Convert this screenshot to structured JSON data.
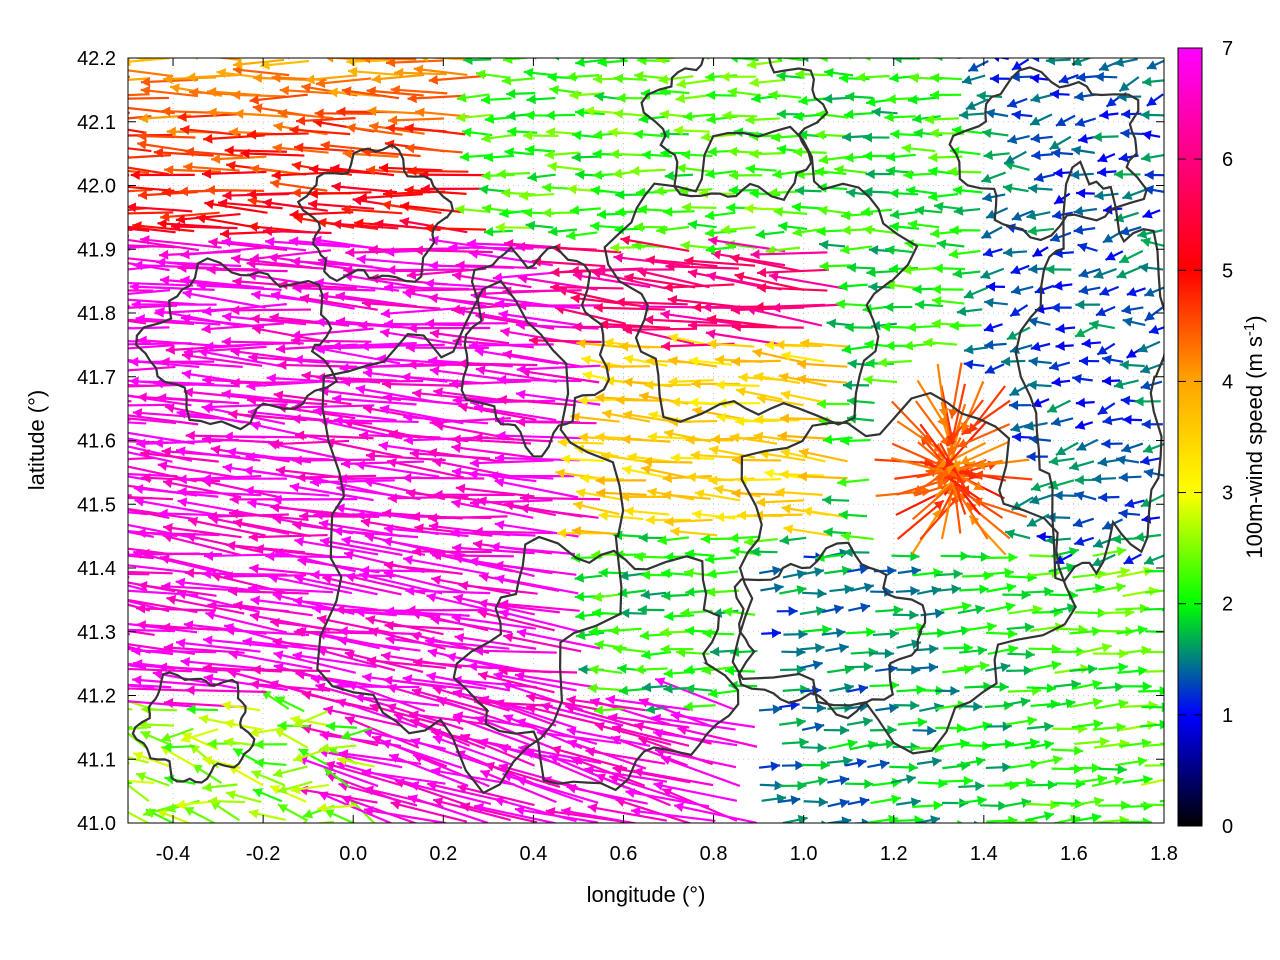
{
  "chart_data": {
    "type": "vector-field",
    "title": "",
    "xlabel": "longitude (°)",
    "ylabel": "latitude (°)",
    "xlim": [
      -0.5,
      1.8
    ],
    "ylim": [
      41.0,
      42.2
    ],
    "xticks": [
      -0.4,
      -0.2,
      0.0,
      0.2,
      0.4,
      0.6,
      0.8,
      1.0,
      1.2,
      1.4,
      1.6,
      1.8
    ],
    "xtick_labels": [
      "-0.4",
      "-0.2",
      "0.0",
      "0.2",
      "0.4",
      "0.6",
      "0.8",
      "1.0",
      "1.2",
      "1.4",
      "1.6",
      "1.8"
    ],
    "yticks": [
      41.0,
      41.1,
      41.2,
      41.3,
      41.4,
      41.5,
      41.6,
      41.7,
      41.8,
      41.9,
      42.0,
      42.1,
      42.2
    ],
    "ytick_labels": [
      "41.0",
      "41.1",
      "41.2",
      "41.3",
      "41.4",
      "41.5",
      "41.6",
      "41.7",
      "41.8",
      "41.9",
      "42.0",
      "42.1",
      "42.2"
    ],
    "grid": true,
    "colorbar": {
      "label": "100m-wind speed (m s",
      "label_sup": "-1",
      "label_suffix": ")",
      "range": [
        0,
        7
      ],
      "ticks": [
        0,
        1,
        2,
        3,
        4,
        5,
        6,
        7
      ],
      "tick_labels": [
        "0",
        "1",
        "2",
        "3",
        "4",
        "5",
        "6",
        "7"
      ],
      "colors": [
        "#000000",
        "#0000ff",
        "#00ff00",
        "#ffff00",
        "#ffa500",
        "#ff0000",
        "#ff00ff"
      ]
    },
    "vector_field": {
      "description_units": "wind speed in m s-1, direction in degrees (meteorological 'towards'): 180 = westward",
      "regions": [
        {
          "lon": [
            -0.5,
            0.6
          ],
          "lat": [
            41.2,
            41.9
          ],
          "speed": 7.0,
          "direction": "westward"
        },
        {
          "lon": [
            -0.5,
            0.3
          ],
          "lat": [
            41.9,
            42.2
          ],
          "speed": 5.0,
          "direction": "westward"
        },
        {
          "lon": [
            0.3,
            1.0
          ],
          "lat": [
            41.8,
            42.2
          ],
          "speed": 2.0,
          "direction": "westward"
        },
        {
          "lon": [
            0.5,
            1.1
          ],
          "lat": [
            41.5,
            41.8
          ],
          "speed": 3.5,
          "direction": "westward"
        },
        {
          "lon": [
            1.1,
            1.4
          ],
          "lat": [
            41.45,
            41.7
          ],
          "speed": 4.5,
          "direction": "converging"
        },
        {
          "lon": [
            0.9,
            1.8
          ],
          "lat": [
            41.0,
            41.4
          ],
          "speed": 1.5,
          "direction": "eastward"
        },
        {
          "lon": [
            1.4,
            1.8
          ],
          "lat": [
            41.6,
            42.2
          ],
          "speed": 1.0,
          "direction": "variable"
        },
        {
          "lon": [
            -0.5,
            0.0
          ],
          "lat": [
            41.0,
            41.2
          ],
          "speed": 2.5,
          "direction": "variable"
        }
      ]
    },
    "contours": {
      "color": "#333333",
      "levels": "terrain height (unlabeled)"
    }
  }
}
